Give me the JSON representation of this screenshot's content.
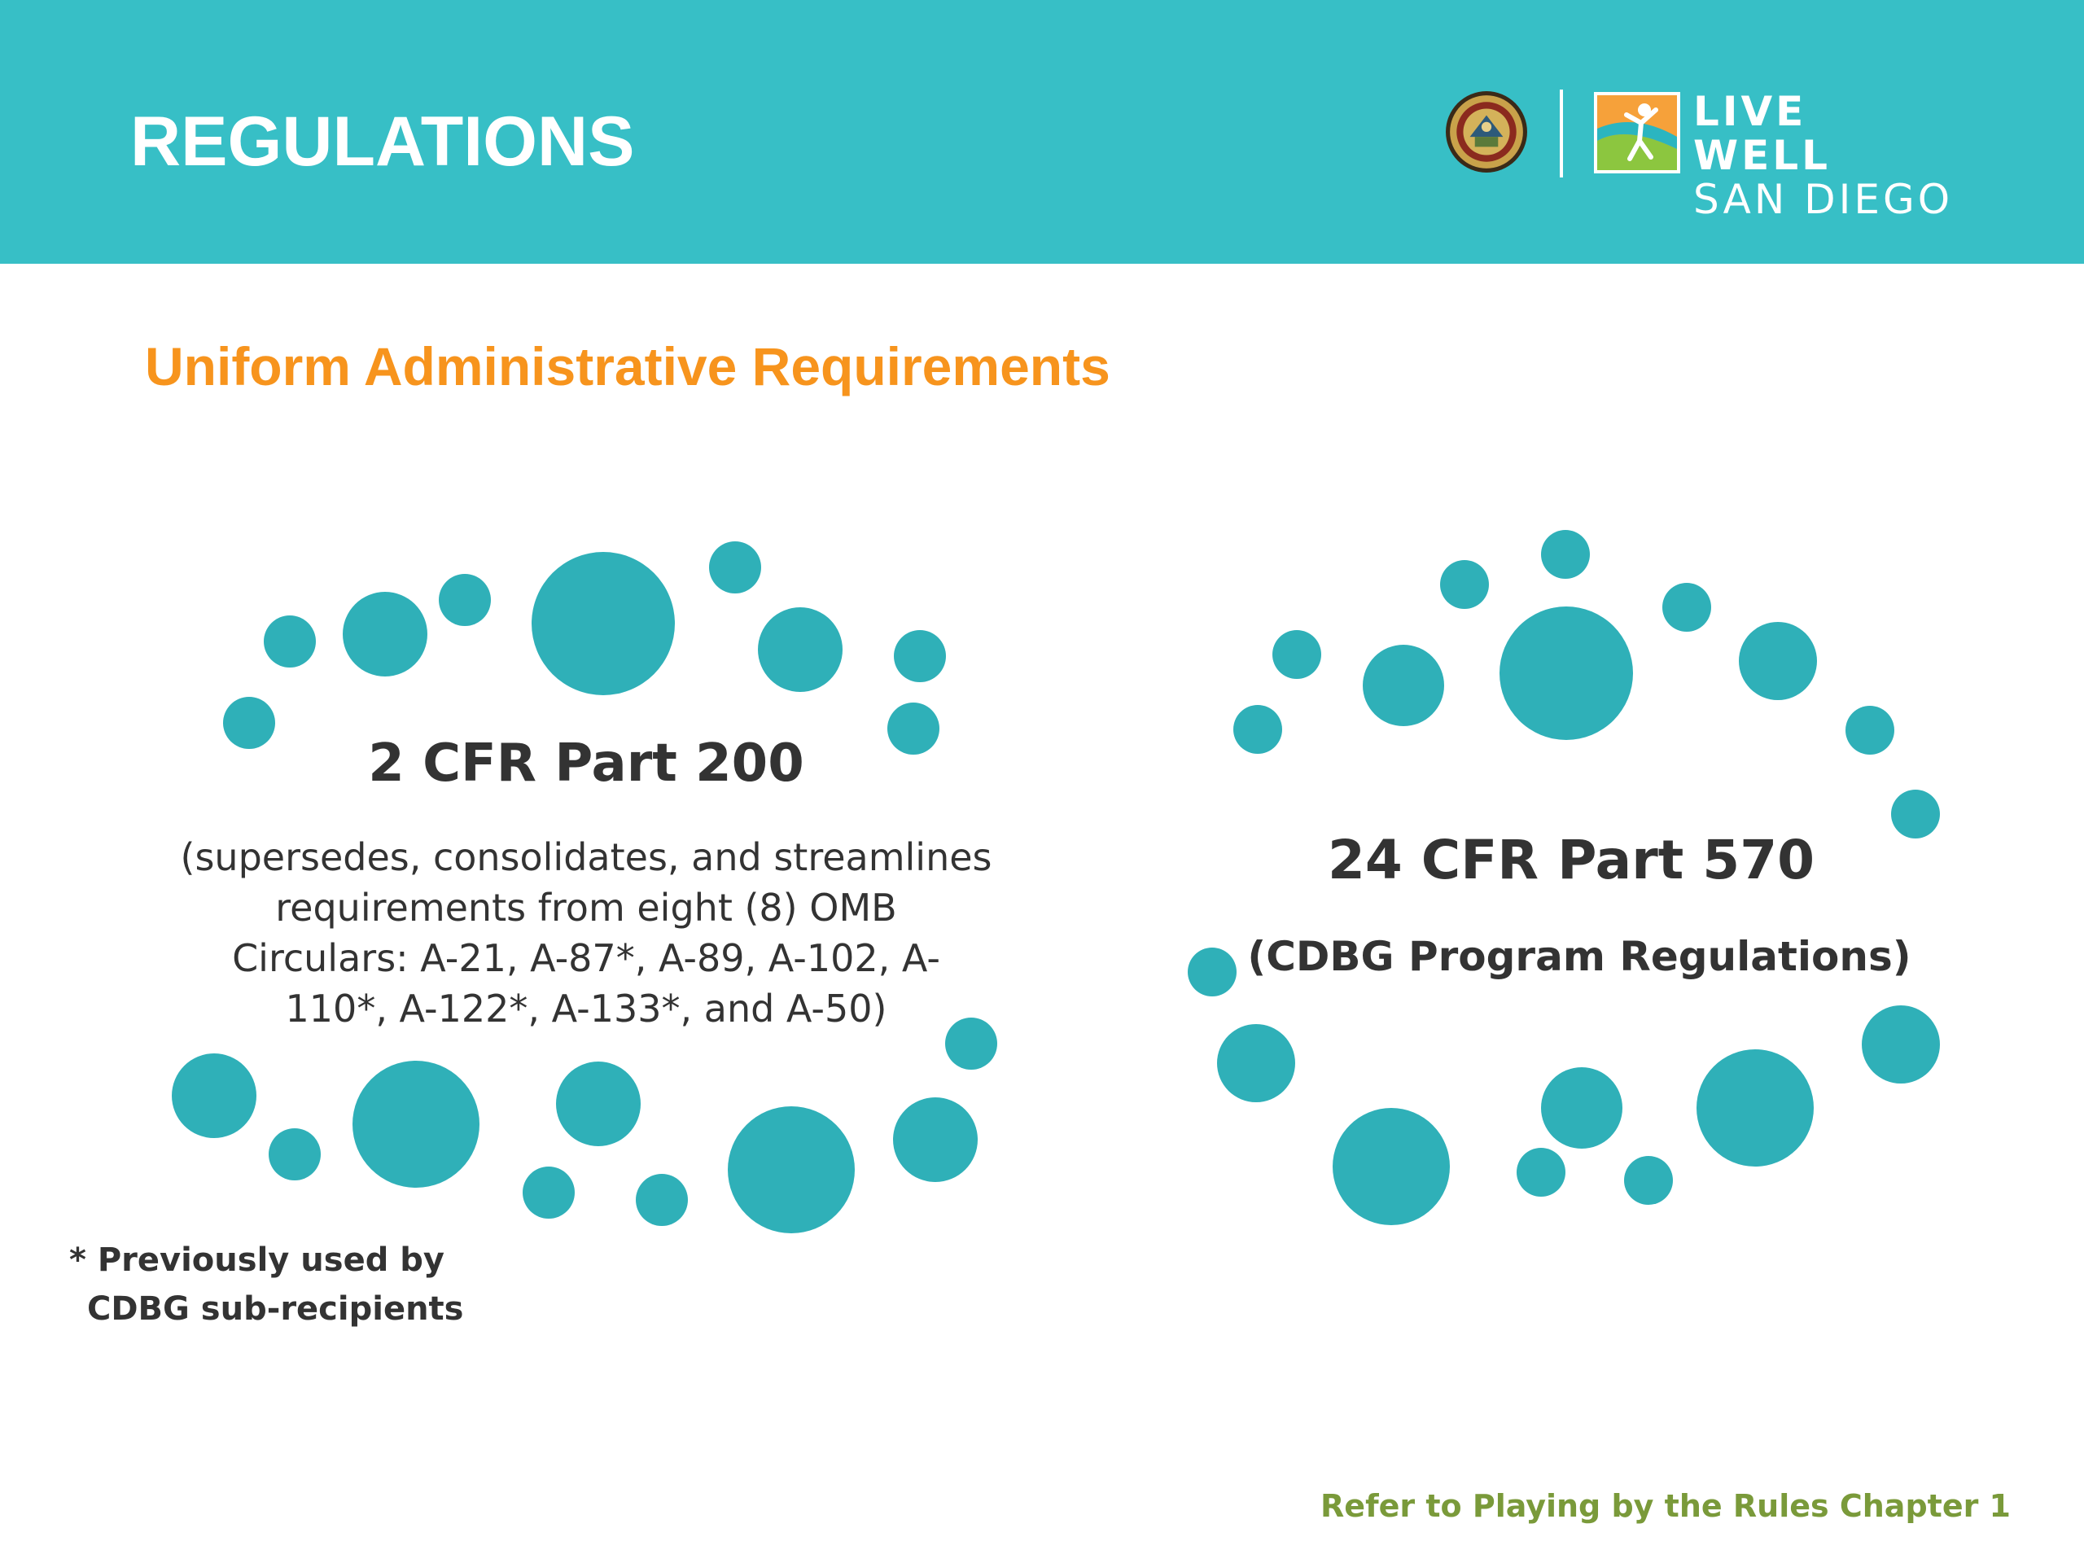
{
  "header": {
    "title": "REGULATIONS",
    "background_color": "#37bfc6",
    "seal_icon": "county-seal-icon",
    "logo": {
      "line1": "LIVE WELL",
      "line2": "SAN DIEGO",
      "icon": "live-well-figure-icon"
    }
  },
  "subtitle": "Uniform Administrative Requirements",
  "left_block": {
    "heading": "2 CFR Part 200",
    "body_lines": [
      "(supersedes, consolidates, and streamlines",
      "requirements from eight (8) OMB",
      "Circulars: A-21, A-87*, A-89, A-102, A-",
      "110*, A-122*, A-133*, and A-50)"
    ]
  },
  "right_block": {
    "heading": "24 CFR Part 570",
    "subheading": "(CDBG Program Regulations)"
  },
  "footnote": {
    "line1": "* Previously used by",
    "line2": "CDBG sub-recipients"
  },
  "reference": "Refer to Playing by the Rules Chapter 1",
  "colors": {
    "accent_teal": "#37bfc6",
    "dot_teal": "#2fb0b8",
    "subtitle_orange": "#f7941d",
    "reference_green": "#7a9a3a",
    "text_dark": "#333333"
  }
}
